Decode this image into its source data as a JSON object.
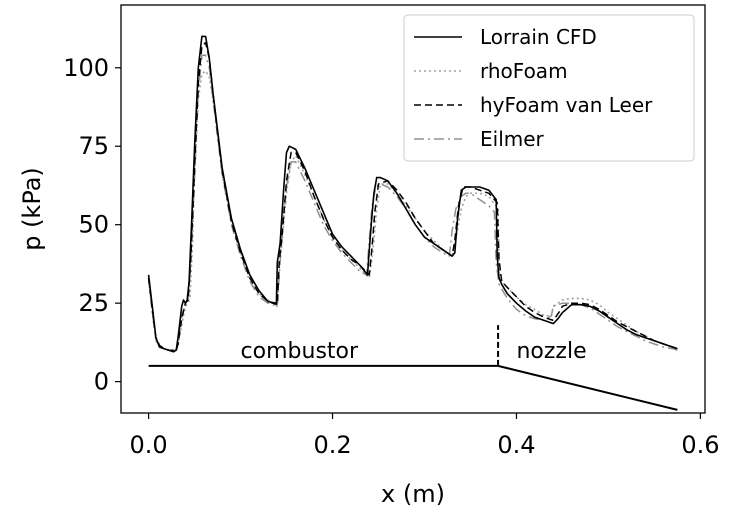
{
  "chart_data": {
    "type": "line",
    "xlabel": "x (m)",
    "ylabel": "p (kPa)",
    "xlim": [
      -0.03,
      0.605
    ],
    "ylim": [
      -10,
      120
    ],
    "xticks": [
      0.0,
      0.2,
      0.4,
      0.6
    ],
    "xtick_labels": [
      "0.0",
      "0.2",
      "0.4",
      "0.6"
    ],
    "yticks": [
      0,
      25,
      50,
      75,
      100
    ],
    "ytick_labels": [
      "0",
      "25",
      "50",
      "75",
      "100"
    ],
    "grid": false,
    "legend_position": "top-right",
    "series": [
      {
        "name": "Lorrain CFD",
        "color": "#000000",
        "dash": "solid",
        "x": [
          0.0,
          0.004,
          0.008,
          0.012,
          0.017,
          0.022,
          0.027,
          0.03,
          0.032,
          0.034,
          0.036,
          0.038,
          0.04,
          0.042,
          0.044,
          0.047,
          0.05,
          0.054,
          0.058,
          0.062,
          0.066,
          0.07,
          0.075,
          0.08,
          0.09,
          0.1,
          0.11,
          0.12,
          0.13,
          0.139,
          0.14,
          0.143,
          0.147,
          0.15,
          0.153,
          0.16,
          0.17,
          0.18,
          0.19,
          0.2,
          0.21,
          0.22,
          0.23,
          0.238,
          0.24,
          0.242,
          0.245,
          0.248,
          0.252,
          0.26,
          0.27,
          0.28,
          0.29,
          0.3,
          0.31,
          0.32,
          0.33,
          0.333,
          0.336,
          0.34,
          0.345,
          0.35,
          0.36,
          0.37,
          0.378,
          0.379,
          0.381,
          0.384,
          0.39,
          0.4,
          0.41,
          0.42,
          0.43,
          0.44,
          0.445,
          0.45,
          0.46,
          0.47,
          0.48,
          0.49,
          0.5,
          0.51,
          0.52,
          0.53,
          0.54,
          0.55,
          0.56,
          0.57,
          0.575
        ],
        "y": [
          34,
          24,
          14,
          11,
          10.5,
          10,
          9.5,
          10,
          14,
          19,
          24,
          26,
          25,
          26,
          32,
          52,
          75,
          100,
          110,
          110,
          103,
          92,
          80,
          68,
          52,
          42,
          34,
          29,
          25.5,
          25,
          38,
          44,
          62,
          73,
          75,
          74,
          68,
          61,
          54,
          47,
          43,
          40,
          37,
          34,
          42,
          50,
          60,
          65,
          65,
          64,
          60,
          55,
          50,
          46,
          44,
          42,
          40,
          41,
          52,
          61,
          62,
          62,
          62,
          61,
          58,
          40,
          33,
          31,
          28,
          25,
          22.5,
          20.5,
          19.5,
          18.5,
          20,
          22,
          24.5,
          24.5,
          24,
          22.5,
          20.5,
          18.5,
          16.5,
          15,
          14,
          13,
          12,
          11,
          10.5
        ]
      },
      {
        "name": "rhoFoam",
        "color": "#a0a0a0",
        "dash": "dotted",
        "x": [
          0.0,
          0.004,
          0.008,
          0.012,
          0.017,
          0.022,
          0.027,
          0.03,
          0.032,
          0.036,
          0.04,
          0.043,
          0.045,
          0.048,
          0.05,
          0.054,
          0.058,
          0.062,
          0.066,
          0.07,
          0.075,
          0.08,
          0.09,
          0.1,
          0.11,
          0.12,
          0.13,
          0.14,
          0.142,
          0.145,
          0.15,
          0.155,
          0.16,
          0.17,
          0.18,
          0.19,
          0.2,
          0.21,
          0.22,
          0.23,
          0.24,
          0.244,
          0.248,
          0.252,
          0.26,
          0.27,
          0.28,
          0.29,
          0.3,
          0.31,
          0.32,
          0.33,
          0.335,
          0.34,
          0.345,
          0.35,
          0.36,
          0.37,
          0.38,
          0.381,
          0.384,
          0.39,
          0.4,
          0.41,
          0.42,
          0.43,
          0.438,
          0.44,
          0.45,
          0.46,
          0.47,
          0.48,
          0.49,
          0.5,
          0.51,
          0.52,
          0.53,
          0.54,
          0.55,
          0.56,
          0.57,
          0.575
        ],
        "y": [
          32,
          22,
          13,
          11,
          10.5,
          10,
          10,
          10,
          11,
          18,
          24,
          25,
          27,
          45,
          70,
          90,
          98,
          99,
          97,
          90,
          79,
          67,
          52,
          41,
          33,
          28,
          26,
          24,
          36,
          44,
          60,
          70,
          72,
          66,
          59,
          52,
          46,
          42,
          39,
          36,
          33,
          42,
          55,
          63,
          63,
          60,
          56,
          52,
          48,
          45,
          42,
          40,
          47,
          55,
          59,
          60,
          60,
          59,
          55,
          37,
          32,
          30,
          27,
          24.5,
          23,
          21,
          21,
          24,
          26,
          26.5,
          26.5,
          26,
          24.5,
          22,
          20,
          18,
          16,
          14.5,
          13,
          12,
          11,
          10.5
        ]
      },
      {
        "name": "hyFoam van Leer",
        "color": "#000000",
        "dash": "dashed",
        "x": [
          0.0,
          0.004,
          0.008,
          0.012,
          0.017,
          0.022,
          0.027,
          0.03,
          0.032,
          0.036,
          0.04,
          0.043,
          0.046,
          0.05,
          0.054,
          0.058,
          0.062,
          0.066,
          0.07,
          0.075,
          0.08,
          0.09,
          0.1,
          0.11,
          0.12,
          0.13,
          0.14,
          0.142,
          0.145,
          0.15,
          0.155,
          0.16,
          0.17,
          0.18,
          0.19,
          0.2,
          0.21,
          0.22,
          0.23,
          0.24,
          0.243,
          0.246,
          0.25,
          0.26,
          0.27,
          0.28,
          0.29,
          0.3,
          0.31,
          0.32,
          0.33,
          0.333,
          0.337,
          0.342,
          0.35,
          0.36,
          0.37,
          0.379,
          0.381,
          0.384,
          0.39,
          0.4,
          0.41,
          0.42,
          0.43,
          0.44,
          0.446,
          0.45,
          0.46,
          0.47,
          0.48,
          0.49,
          0.5,
          0.51,
          0.52,
          0.53,
          0.54,
          0.55,
          0.56,
          0.57,
          0.575
        ],
        "y": [
          33,
          23,
          14,
          11.5,
          10.5,
          10,
          10,
          10,
          12,
          20,
          25,
          26,
          40,
          68,
          95,
          107,
          108,
          103,
          92,
          79,
          67,
          51,
          41,
          33,
          28,
          25.5,
          24.5,
          38,
          46,
          64,
          73,
          73,
          67,
          59,
          52,
          46,
          42,
          39,
          37,
          34,
          43,
          54,
          63,
          64,
          61,
          57,
          52,
          48,
          44,
          42,
          40,
          45,
          56,
          62,
          62,
          61,
          60,
          57,
          39,
          32,
          30,
          27,
          24,
          22,
          20.5,
          19.5,
          22,
          24,
          25,
          25,
          24.5,
          23,
          21,
          19,
          17.5,
          16,
          14.5,
          13,
          12,
          11,
          10.5
        ]
      },
      {
        "name": "Eilmer",
        "color": "#909090",
        "dash": "dashdot",
        "x": [
          0.0,
          0.004,
          0.008,
          0.012,
          0.017,
          0.022,
          0.027,
          0.03,
          0.032,
          0.036,
          0.04,
          0.043,
          0.046,
          0.05,
          0.054,
          0.058,
          0.062,
          0.066,
          0.07,
          0.075,
          0.08,
          0.09,
          0.1,
          0.11,
          0.12,
          0.13,
          0.14,
          0.143,
          0.146,
          0.15,
          0.155,
          0.16,
          0.17,
          0.18,
          0.19,
          0.2,
          0.21,
          0.22,
          0.23,
          0.237,
          0.24,
          0.243,
          0.247,
          0.252,
          0.26,
          0.27,
          0.28,
          0.29,
          0.3,
          0.31,
          0.32,
          0.327,
          0.33,
          0.334,
          0.34,
          0.345,
          0.35,
          0.36,
          0.37,
          0.376,
          0.378,
          0.381,
          0.384,
          0.39,
          0.4,
          0.41,
          0.42,
          0.43,
          0.438,
          0.44,
          0.45,
          0.46,
          0.47,
          0.48,
          0.49,
          0.5,
          0.51,
          0.52,
          0.53,
          0.54,
          0.55,
          0.56,
          0.57,
          0.575
        ],
        "y": [
          33,
          22,
          13.5,
          11,
          10.5,
          10,
          10,
          10,
          12,
          21,
          25,
          26,
          38,
          65,
          92,
          104,
          104,
          100,
          90,
          78,
          66,
          50,
          40,
          32,
          27,
          25,
          24,
          38,
          50,
          62,
          70,
          70,
          64,
          57,
          50,
          45,
          41,
          38,
          35,
          34,
          45,
          56,
          62,
          63,
          62,
          59,
          55,
          50,
          46,
          43,
          41,
          40,
          48,
          55,
          59,
          60,
          60,
          58,
          56,
          54,
          38,
          31,
          29.5,
          26.5,
          23,
          21,
          20,
          19.5,
          21,
          24,
          25,
          25,
          24.5,
          23.5,
          21.5,
          19.5,
          17.5,
          16,
          14.5,
          13,
          12,
          11,
          10.5,
          10
        ]
      }
    ],
    "geometry": {
      "name": "geometry",
      "color": "#000000",
      "x": [
        0.0,
        0.38,
        0.575
      ],
      "y": [
        5,
        5,
        -9
      ]
    },
    "divider": {
      "x": 0.38,
      "y": [
        5,
        18
      ]
    },
    "annotations": [
      {
        "text": "combustor",
        "x": 0.1,
        "y": 7.5
      },
      {
        "text": "nozzle",
        "x": 0.4,
        "y": 7.5
      }
    ]
  }
}
